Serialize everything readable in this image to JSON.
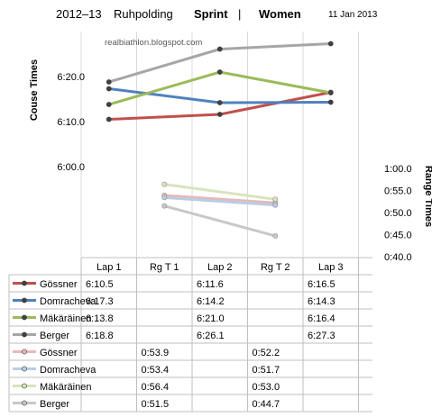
{
  "header": {
    "season": "2012–13",
    "venue": "Ruhpolding",
    "event": "Sprint",
    "separator": "|",
    "gender": "Women",
    "date": "11 Jan 2013"
  },
  "watermark": "realbiathlon.blogspot.com",
  "chart_data": {
    "type": "line",
    "categories": [
      "Lap 1",
      "Rg  T 1",
      "Lap 2",
      "Rg T 2",
      "Lap 3"
    ],
    "left_axis": {
      "label": "Couse Times",
      "ticks": [
        "6:20.0",
        "6:10.0",
        "6:00.0"
      ],
      "tick_values": [
        380,
        370,
        360
      ],
      "range": [
        340,
        390
      ]
    },
    "right_axis": {
      "label": "Range Times",
      "ticks": [
        "1:00.0",
        "0:55.0",
        "0:50.0",
        "0:45.0",
        "0:40.0"
      ],
      "tick_values": [
        60,
        55,
        50,
        45,
        40
      ],
      "range": [
        40,
        60
      ]
    },
    "grid": "vertical",
    "series": [
      {
        "name": "Gössner",
        "axis": "course",
        "color": "#c0504d",
        "labels": [
          "6:10.5",
          "",
          "6:11.6",
          "",
          "6:16.5"
        ],
        "values": [
          370.5,
          null,
          371.6,
          null,
          376.5
        ]
      },
      {
        "name": "Domracheva",
        "axis": "course",
        "color": "#4f81bd",
        "labels": [
          "6:17.3",
          "",
          "6:14.2",
          "",
          "6:14.3"
        ],
        "values": [
          377.3,
          null,
          374.2,
          null,
          374.3
        ]
      },
      {
        "name": "Mäkäräinen",
        "axis": "course",
        "color": "#9bbb59",
        "labels": [
          "6:13.8",
          "",
          "6:21.0",
          "",
          "6:16.4"
        ],
        "values": [
          373.8,
          null,
          381.0,
          null,
          376.4
        ]
      },
      {
        "name": "Berger",
        "axis": "course",
        "color": "#a6a6a6",
        "labels": [
          "6:18.8",
          "",
          "6:26.1",
          "",
          "6:27.3"
        ],
        "values": [
          378.8,
          null,
          386.1,
          null,
          387.3
        ]
      },
      {
        "name": "Gössner",
        "axis": "range",
        "color": "#e6b9b8",
        "labels": [
          "",
          "0:53.9",
          "",
          "0:52.2",
          ""
        ],
        "values": [
          null,
          53.9,
          null,
          52.2,
          null
        ]
      },
      {
        "name": "Domracheva",
        "axis": "range",
        "color": "#b9cde5",
        "labels": [
          "",
          "0:53.4",
          "",
          "0:51.7",
          ""
        ],
        "values": [
          null,
          53.4,
          null,
          51.7,
          null
        ]
      },
      {
        "name": "Mäkäräinen",
        "axis": "range",
        "color": "#d7e4bd",
        "labels": [
          "",
          "0:56.4",
          "",
          "0:53.0",
          ""
        ],
        "values": [
          null,
          56.4,
          null,
          53.0,
          null
        ]
      },
      {
        "name": "Berger",
        "axis": "range",
        "color": "#c8c8c8",
        "labels": [
          "",
          "0:51.5",
          "",
          "0:44.7",
          ""
        ],
        "values": [
          null,
          51.5,
          null,
          44.7,
          null
        ]
      }
    ]
  }
}
